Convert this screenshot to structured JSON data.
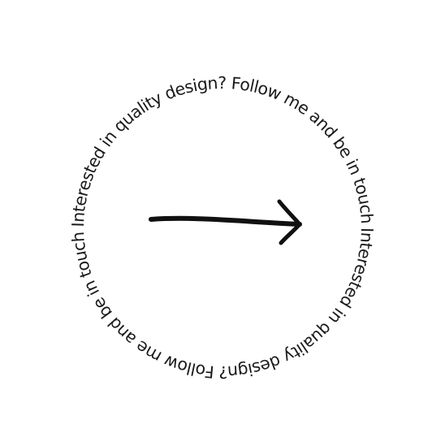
{
  "badge": {
    "ring_text": "Interested in quality design? Follow me and be in touch  Interested in quality design? Follow me and  be in touch ",
    "text_color": "#1a1a1a",
    "arrow_icon": "right-arrow-icon",
    "arrow_color": "#111111"
  }
}
